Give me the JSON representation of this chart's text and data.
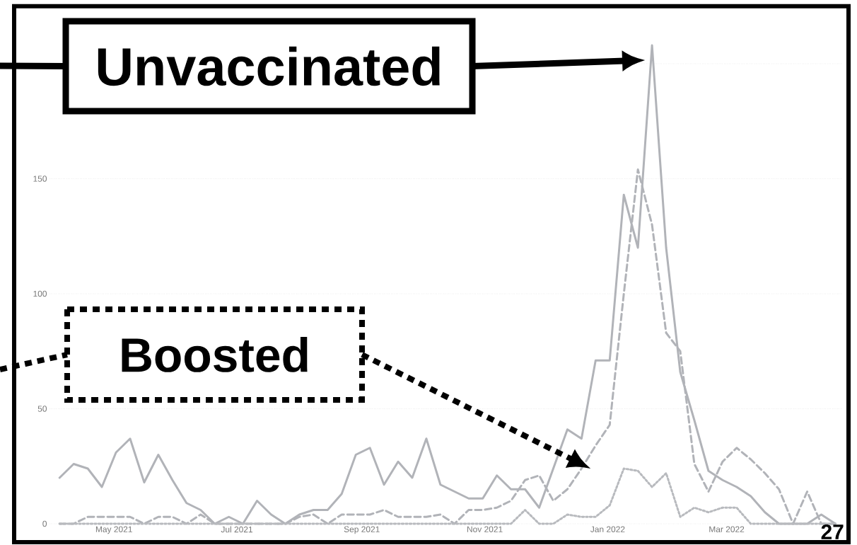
{
  "chart_data": {
    "type": "line",
    "x": [
      "2021-04-04",
      "2021-04-11",
      "2021-04-18",
      "2021-04-25",
      "2021-05-02",
      "2021-05-09",
      "2021-05-16",
      "2021-05-23",
      "2021-05-30",
      "2021-06-06",
      "2021-06-13",
      "2021-06-20",
      "2021-06-27",
      "2021-07-04",
      "2021-07-11",
      "2021-07-18",
      "2021-07-25",
      "2021-08-01",
      "2021-08-08",
      "2021-08-15",
      "2021-08-22",
      "2021-08-29",
      "2021-09-05",
      "2021-09-12",
      "2021-09-19",
      "2021-09-26",
      "2021-10-03",
      "2021-10-10",
      "2021-10-17",
      "2021-10-24",
      "2021-10-31",
      "2021-11-07",
      "2021-11-14",
      "2021-11-21",
      "2021-11-28",
      "2021-12-05",
      "2021-12-12",
      "2021-12-19",
      "2021-12-26",
      "2022-01-02",
      "2022-01-09",
      "2022-01-16",
      "2022-01-23",
      "2022-01-30",
      "2022-02-06",
      "2022-02-13",
      "2022-02-20",
      "2022-02-27",
      "2022-03-06",
      "2022-03-13",
      "2022-03-20",
      "2022-03-27",
      "2022-04-03",
      "2022-04-10",
      "2022-04-17",
      "2022-04-24"
    ],
    "series": [
      {
        "color": "#b1b3b8",
        "line_style": "solid",
        "values": [
          20,
          26,
          24,
          16,
          31,
          37,
          18,
          30,
          19,
          9,
          6,
          0,
          3,
          0,
          10,
          4,
          0,
          4,
          6,
          6,
          13,
          30,
          33,
          17,
          27,
          20,
          37,
          17,
          14,
          11,
          11,
          21,
          15,
          15,
          7,
          24,
          41,
          37,
          71,
          71,
          143,
          120,
          208,
          120,
          66,
          45,
          23,
          19,
          16,
          12,
          5,
          0,
          0,
          0,
          4,
          0
        ]
      },
      {
        "color": "#b1b3b8",
        "line_style": "dashed",
        "values": [
          0,
          0,
          3,
          3,
          3,
          3,
          0,
          3,
          3,
          0,
          4,
          0,
          0,
          0,
          0,
          0,
          0,
          3,
          4,
          0,
          4,
          4,
          4,
          6,
          3,
          3,
          3,
          4,
          0,
          6,
          6,
          7,
          10,
          19,
          21,
          10,
          15,
          24,
          34,
          43,
          100,
          154,
          130,
          83,
          75,
          26,
          14,
          27,
          33,
          28,
          22,
          15,
          0,
          14,
          0,
          0
        ]
      },
      {
        "color": "#b8babe",
        "line_style": "dotted",
        "values": [
          0,
          0,
          0,
          0,
          0,
          0,
          0,
          0,
          0,
          0,
          0,
          0,
          0,
          0,
          0,
          0,
          0,
          0,
          0,
          0,
          0,
          0,
          0,
          0,
          0,
          0,
          0,
          0,
          0,
          0,
          0,
          0,
          0,
          6,
          0,
          0,
          4,
          3,
          3,
          8,
          24,
          23,
          16,
          22,
          3,
          7,
          5,
          7,
          7,
          0,
          0,
          0,
          0,
          0,
          0,
          0
        ]
      }
    ],
    "xlim": [
      "2021-03-30",
      "2022-04-27"
    ],
    "xticks": [
      {
        "value": "2021-05-01",
        "label": "May 2021"
      },
      {
        "value": "2021-07-01",
        "label": "Jul 2021"
      },
      {
        "value": "2021-09-01",
        "label": "Sep 2021"
      },
      {
        "value": "2021-11-01",
        "label": "Nov 2021"
      },
      {
        "value": "2022-01-01",
        "label": "Jan 2022"
      },
      {
        "value": "2022-03-01",
        "label": "Mar 2022"
      }
    ],
    "ylim": [
      0,
      225
    ],
    "yticks": [
      0,
      50,
      100,
      150,
      {
        "value": 200,
        "label": null
      }
    ],
    "grid": "y",
    "annotations": [
      "Unvaccinated",
      "Boosted",
      "27"
    ]
  }
}
